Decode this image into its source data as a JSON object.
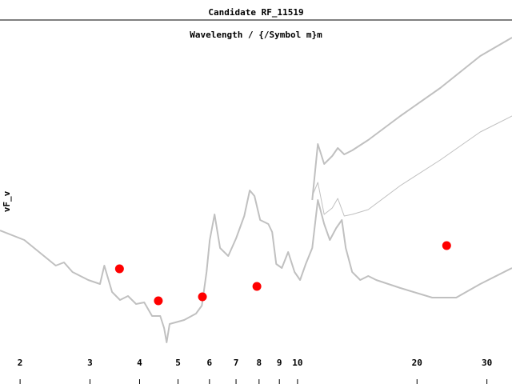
{
  "chart_data": {
    "type": "line",
    "title": "Candidate RF_11519",
    "subtitle": "Wavelength / {/Symbol m}m",
    "y_label": "vF_v",
    "log_x": true,
    "xlim": [
      1.78,
      34.7
    ],
    "ylim": [
      0,
      462
    ],
    "xticks": [
      2,
      3,
      4,
      5,
      6,
      7,
      8,
      9,
      10,
      20,
      30
    ],
    "series": [
      {
        "color": "#c0c0c0",
        "width": 2,
        "x": [
          1.78,
          2.05,
          2.46,
          2.58,
          2.71,
          2.97,
          3.18,
          3.26,
          3.41,
          3.57,
          3.74,
          3.92,
          4.11,
          4.3,
          4.51,
          4.61,
          4.68,
          4.76,
          5.18,
          5.55,
          5.74,
          5.9,
          6.01,
          6.18,
          6.38,
          6.69,
          7.0,
          7.34,
          7.58,
          7.79,
          8.05,
          8.44,
          8.63,
          8.84,
          9.13,
          9.47,
          9.83,
          10.15,
          10.49,
          10.89,
          11.25,
          11.67,
          12.06,
          12.52,
          12.93,
          13.23,
          13.73,
          14.39,
          15.07,
          15.79,
          18.15,
          21.84,
          25.11,
          28.86,
          34.7
        ],
        "values": [
          192,
          180,
          148,
          152,
          140,
          130,
          125,
          148,
          115,
          105,
          110,
          100,
          102,
          85,
          85,
          70,
          52,
          75,
          80,
          88,
          98,
          140,
          180,
          212,
          170,
          160,
          182,
          210,
          242,
          235,
          205,
          200,
          190,
          150,
          145,
          165,
          140,
          130,
          150,
          170,
          230,
          200,
          180,
          195,
          205,
          170,
          140,
          130,
          135,
          130,
          120,
          108,
          108,
          125,
          145
        ]
      },
      {
        "color": "#c0c0c0",
        "width": 2,
        "x": [
          10.89,
          11.25,
          11.67,
          12.23,
          12.63,
          13.11,
          13.73,
          15.07,
          18.15,
          22.88,
          28.86,
          34.7
        ],
        "values": [
          230,
          300,
          275,
          285,
          295,
          287,
          292,
          305,
          335,
          370,
          410,
          433
        ]
      },
      {
        "color": "#c0c0c0",
        "width": 1,
        "x": [
          10.89,
          11.25,
          11.67,
          12.23,
          12.63,
          13.11,
          13.73,
          15.07,
          18.15,
          22.88,
          28.86,
          34.7
        ],
        "values": [
          235,
          252,
          212,
          220,
          232,
          210,
          212,
          218,
          248,
          280,
          315,
          335
        ]
      }
    ],
    "points": {
      "color": "#ff0000",
      "x": [
        3.56,
        4.46,
        5.76,
        7.9,
        23.75
      ],
      "values": [
        144,
        104,
        109,
        122,
        173
      ]
    }
  }
}
